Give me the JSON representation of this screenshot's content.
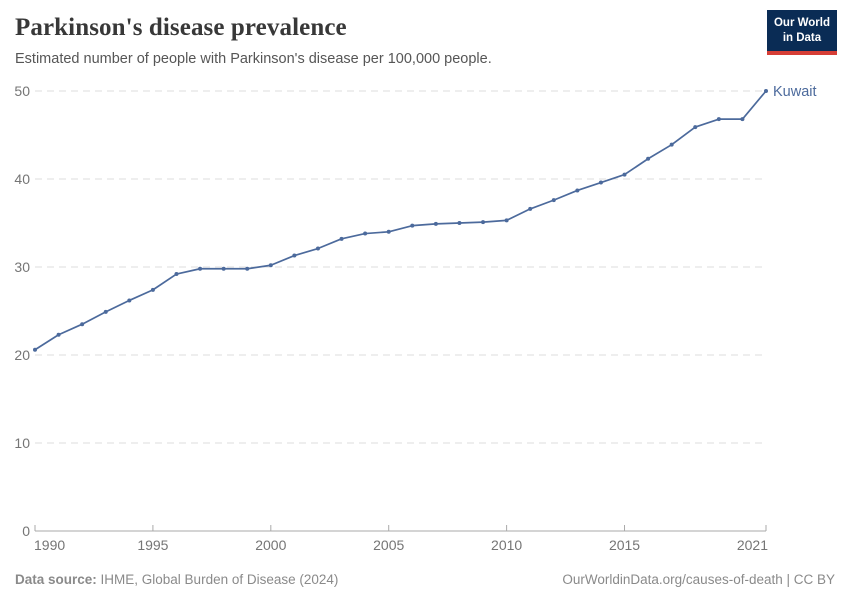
{
  "header": {
    "title": "Parkinson's disease prevalence",
    "subtitle": "Estimated number of people with Parkinson's disease per 100,000 people.",
    "logo": {
      "line1": "Our World",
      "line2": "in Data",
      "bg_color": "#0A2C55",
      "bar_color": "#D63E36"
    }
  },
  "chart_data": {
    "type": "line",
    "title": "Parkinson's disease prevalence",
    "xlabel": "",
    "ylabel": "",
    "xlim": [
      1990,
      2021
    ],
    "ylim": [
      0,
      50
    ],
    "x_ticks": [
      1990,
      1995,
      2000,
      2005,
      2010,
      2015,
      2021
    ],
    "y_ticks": [
      0,
      10,
      20,
      30,
      40,
      50
    ],
    "grid": "horizontal-dashed",
    "legend_position": "end-of-line-label",
    "theme": {
      "grid_color": "#dcdcdc",
      "axis_color": "#a9a9a9",
      "tick_label_color": "#757575"
    },
    "series": [
      {
        "name": "Kuwait",
        "color": "#4C6A9C",
        "x": [
          1990,
          1991,
          1992,
          1993,
          1994,
          1995,
          1996,
          1997,
          1998,
          1999,
          2000,
          2001,
          2002,
          2003,
          2004,
          2005,
          2006,
          2007,
          2008,
          2009,
          2010,
          2011,
          2012,
          2013,
          2014,
          2015,
          2016,
          2017,
          2018,
          2019,
          2020,
          2021
        ],
        "values": [
          20.6,
          22.3,
          23.5,
          24.9,
          26.2,
          27.4,
          29.2,
          29.8,
          29.8,
          29.8,
          30.2,
          31.3,
          32.1,
          33.2,
          33.8,
          34.0,
          34.7,
          34.9,
          35.0,
          35.1,
          35.3,
          36.6,
          37.6,
          38.7,
          39.6,
          40.5,
          42.3,
          43.9,
          45.9,
          46.8,
          46.8,
          50.0
        ]
      }
    ]
  },
  "footer": {
    "datasource_label": "Data source:",
    "datasource_text": " IHME, Global Burden of Disease (2024)",
    "credit": "OurWorldinData.org/causes-of-death | CC BY"
  }
}
